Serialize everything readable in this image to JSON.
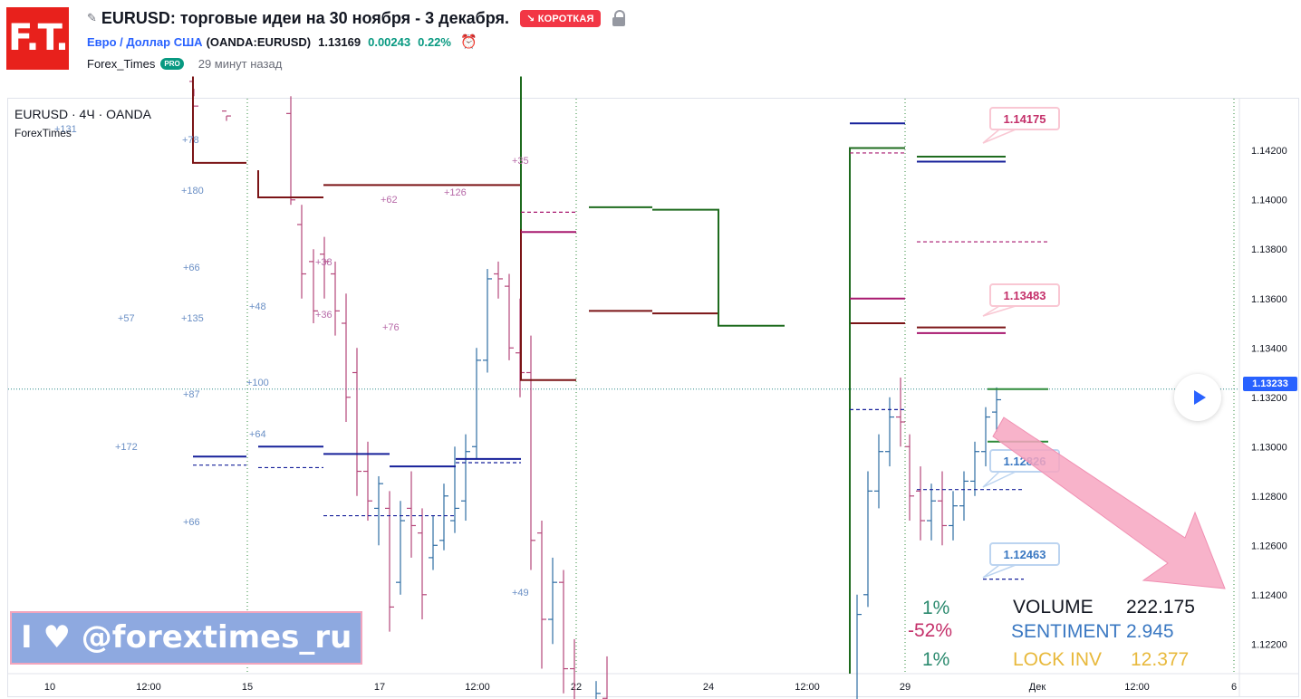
{
  "header": {
    "logo_text": "F.T.",
    "title": "EURUSD: торговые идеи на 30 ноября - 3 декабря.",
    "badge": "↘ КОРОТКАЯ",
    "symbol_name": "Евро / Доллар США",
    "symbol_exchange": "(OANDA:EURUSD)",
    "price": "1.13169",
    "change": "0.00243",
    "change_pct": "0.22%",
    "author": "Forex_Times",
    "pro_label": "PRO",
    "posted": "29 минут назад"
  },
  "chart_legend": {
    "symbol": "EURUSD · 4Ч · OANDA",
    "study": "ForexTimes"
  },
  "colors": {
    "up_candle": "#2e6da4",
    "down_candle": "#b5477a",
    "dark_red": "#7b1416",
    "green": "#1e6b1e",
    "navy": "#16209a",
    "magenta": "#a8186f",
    "accent": "#2962ff",
    "arrow_pink": "#f7a6c1"
  },
  "chart_data": {
    "type": "ohlc",
    "instrument": "EURUSD",
    "timeframe": "4Ч",
    "y_axis": {
      "ylim": [
        1.1208,
        1.1441
      ],
      "ticks": [
        "1.14200",
        "1.14000",
        "1.13800",
        "1.13600",
        "1.13400",
        "1.13200",
        "1.13000",
        "1.12800",
        "1.12600",
        "1.12400",
        "1.12200"
      ],
      "current_price": "1.13233"
    },
    "x_axis": {
      "ticks": [
        "10",
        "12:00",
        "15",
        "17",
        "12:00",
        "22",
        "24",
        "12:00",
        "29",
        "Дек",
        "12:00",
        "6"
      ]
    },
    "price_labels": [
      {
        "label": "1.14175",
        "color": "#c4306a",
        "value": 1.14175
      },
      {
        "label": "1.13483",
        "color": "#c4306a",
        "value": 1.13483
      },
      {
        "label": "1.12826",
        "color": "#3a78c2",
        "value": 1.12826
      },
      {
        "label": "1.12463",
        "color": "#3a78c2",
        "value": 1.12463
      }
    ],
    "level_annotations": [
      {
        "text": "+131",
        "color": "#6a8fc5"
      },
      {
        "text": "+78",
        "color": "#6a8fc5"
      },
      {
        "text": "+180",
        "color": "#6a8fc5"
      },
      {
        "text": "+66",
        "color": "#6a8fc5"
      },
      {
        "text": "+57",
        "color": "#6a8fc5"
      },
      {
        "text": "+135",
        "color": "#6a8fc5"
      },
      {
        "text": "+87",
        "color": "#6a8fc5"
      },
      {
        "text": "+172",
        "color": "#6a8fc5"
      },
      {
        "text": "+66",
        "color": "#6a8fc5"
      },
      {
        "text": "+48",
        "color": "#6a8fc5"
      },
      {
        "text": "+100",
        "color": "#6a8fc5"
      },
      {
        "text": "+64",
        "color": "#6a8fc5"
      },
      {
        "text": "+38",
        "color": "#b76aa8"
      },
      {
        "text": "+36",
        "color": "#b76aa8"
      },
      {
        "text": "+62",
        "color": "#b76aa8"
      },
      {
        "text": "+76",
        "color": "#b76aa8"
      },
      {
        "text": "+126",
        "color": "#b76aa8"
      },
      {
        "text": "+35",
        "color": "#b76aa8"
      },
      {
        "text": "+49",
        "color": "#6a8fc5"
      }
    ],
    "percent_labels": [
      {
        "text": "1%",
        "color": "#2b8a6e"
      },
      {
        "text": "-52%",
        "color": "#c4306a"
      },
      {
        "text": "1%",
        "color": "#2b8a6e"
      }
    ],
    "stats": [
      {
        "label": "VOLUME",
        "value": "222.175",
        "color": "#131722"
      },
      {
        "label": "SENTIMENT",
        "value": "2.945",
        "color": "#3a78c2"
      },
      {
        "label": "LOCK INV",
        "value": "12.377",
        "color": "#e8b93c"
      }
    ]
  },
  "promo": {
    "text": "I ♥ @forextimes_ru"
  }
}
